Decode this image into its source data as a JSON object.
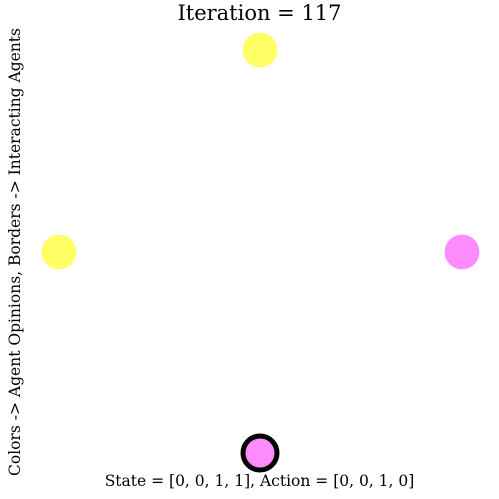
{
  "title": "Iteration = 117",
  "ylabel": "Colors -> Agent Opinions, Borders -> Interacting Agents",
  "footer": "State = [0, 0, 1, 1], Action = [0, 0, 1, 0]",
  "colors": {
    "opinion_1": "#ffff66",
    "opinion_0": "#ff8cff",
    "interacting_border": "#000000"
  },
  "agents": [
    {
      "id": 0,
      "position": "top",
      "opinion": 1,
      "interacting": false
    },
    {
      "id": 1,
      "position": "left",
      "opinion": 1,
      "interacting": false
    },
    {
      "id": 2,
      "position": "right",
      "opinion": 0,
      "interacting": false
    },
    {
      "id": 3,
      "position": "bottom",
      "opinion": 0,
      "interacting": true
    }
  ]
}
